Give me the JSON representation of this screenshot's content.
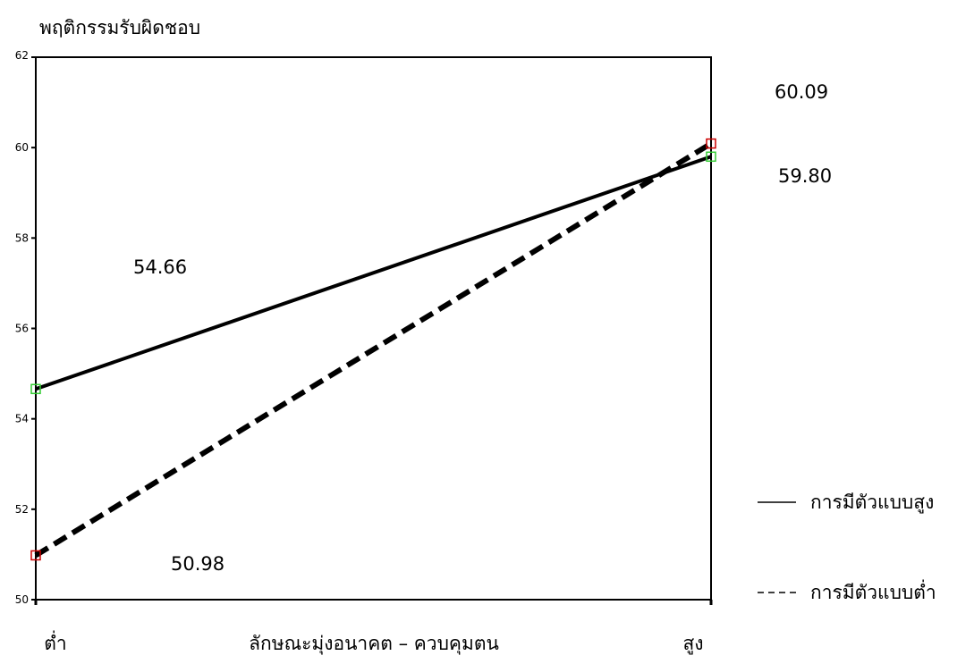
{
  "chart_data": {
    "type": "line",
    "ylabel": "พฤติกรรมรับผิดชอบ",
    "xlabel": "ลักษณะมุ่งอนาคต – ควบคุมตน",
    "categories": [
      "ต่ำ",
      "สูง"
    ],
    "ylim": [
      50,
      62
    ],
    "yticks": [
      50,
      52,
      54,
      56,
      58,
      60,
      62
    ],
    "grid": false,
    "legend_position": "right",
    "series": [
      {
        "name": "การมีตัวแบบสูง",
        "values": [
          54.66,
          59.8
        ],
        "labels": [
          "54.66",
          "59.80"
        ],
        "line_style": "solid",
        "marker_color": "#33cc33"
      },
      {
        "name": "การมีตัวแบบต่ำ",
        "values": [
          50.98,
          60.09
        ],
        "labels": [
          "50.98",
          "60.09"
        ],
        "line_style": "dashed",
        "marker_color": "#cc0000"
      }
    ]
  }
}
